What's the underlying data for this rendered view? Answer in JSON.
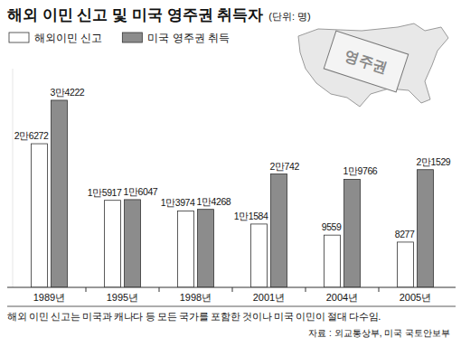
{
  "chart_data": {
    "type": "bar",
    "title": "해외 이민 신고 및 미국 영주권 취득자",
    "subtitle": "(단위: 명)",
    "categories": [
      "1989년",
      "1995년",
      "1998년",
      "2001년",
      "2004년",
      "2005년"
    ],
    "series": [
      {
        "name": "해외이민 신고",
        "color": "#ffffff",
        "values": [
          26272,
          15917,
          13974,
          11584,
          9559,
          8277
        ],
        "value_labels": [
          "2만6272",
          "1만5917",
          "1만3974",
          "1만1584",
          "9559",
          "8277"
        ]
      },
      {
        "name": "미국 영주권 취득",
        "color": "#8c8c8c",
        "values": [
          34222,
          16047,
          14268,
          20742,
          19766,
          21529
        ],
        "value_labels": [
          "3만4222",
          "1만6047",
          "1만4268",
          "2만742",
          "1만9766",
          "2만1529"
        ]
      }
    ],
    "ylim": [
      0,
      40000
    ],
    "grid": false,
    "legend": "top-left",
    "data_labels": true,
    "tick_labels": "x",
    "annotations": [
      "영주권",
      "해외 이민 신고는 미국과 캐나다 등 모든 국가를 포함한 것이나 미국 이민이 절대 다수임.",
      "자료 : 외교통상부, 미국 국토안보부"
    ]
  }
}
